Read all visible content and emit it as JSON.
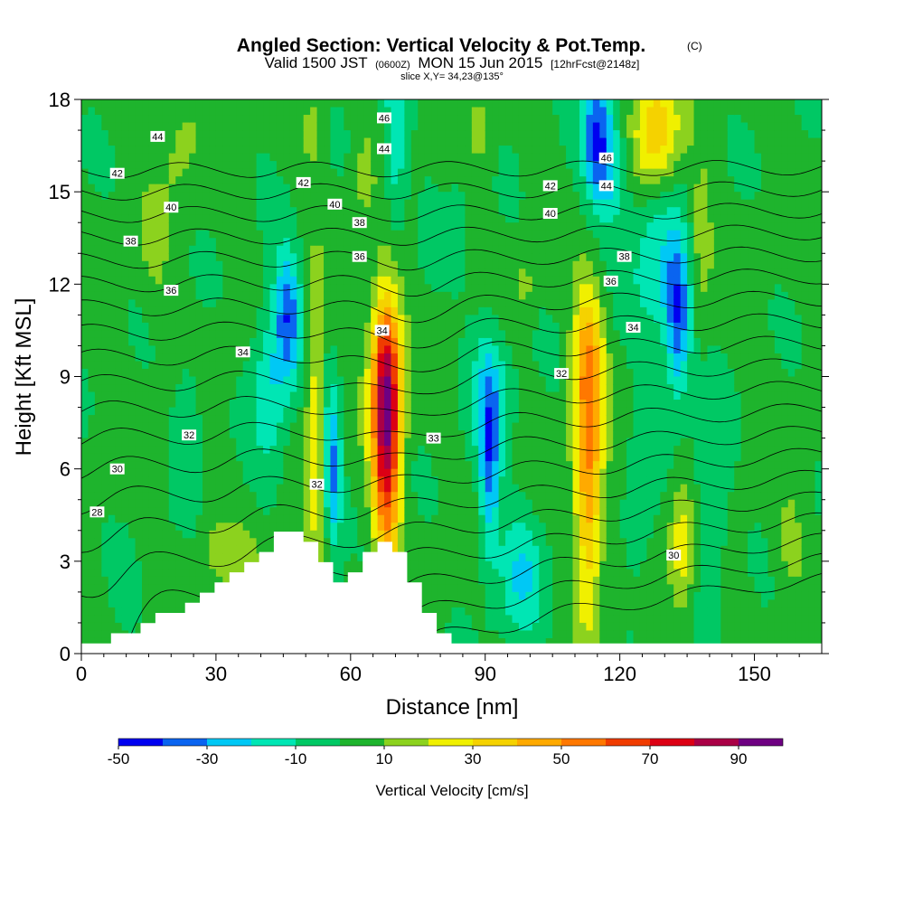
{
  "chart_data": {
    "type": "heatmap",
    "title": {
      "main": "Angled Section: Vertical Velocity & Pot.Temp.",
      "main_tag": "(C)",
      "valid_prefix": "Valid 1500 JST",
      "valid_zulu": "(0600Z)",
      "valid_date": "MON 15 Jun 2015",
      "forecast": "[12hrFcst@2148z]",
      "slice": "slice X,Y= 34,23@135°"
    },
    "xlabel": "Distance [nm]",
    "ylabel": "Height [Kft MSL]",
    "xlim": [
      0,
      165
    ],
    "ylim": [
      0,
      18
    ],
    "xticks": [
      0,
      30,
      60,
      90,
      120,
      150
    ],
    "yticks": [
      0,
      3,
      6,
      9,
      12,
      15,
      18
    ],
    "colorbar": {
      "title": "Vertical Velocity [cm/s]",
      "levels": [
        -50,
        -40,
        -30,
        -20,
        -10,
        0,
        10,
        20,
        30,
        40,
        50,
        60,
        70,
        80,
        90,
        100
      ],
      "labels": [
        "-50",
        "-30",
        "-10",
        "10",
        "30",
        "50",
        "70",
        "90"
      ],
      "label_values": [
        -50,
        -30,
        -10,
        10,
        30,
        50,
        70,
        90
      ],
      "colors": [
        "#0000f0",
        "#0a64f0",
        "#00c8f5",
        "#00e6b4",
        "#00c864",
        "#1eb42d",
        "#8cd21e",
        "#f0f000",
        "#f5d200",
        "#ffaa00",
        "#ff7800",
        "#f03c00",
        "#dc0014",
        "#aa0046",
        "#6e0082"
      ]
    },
    "vertical_velocity_features": [
      {
        "x": 68,
        "y": 7.0,
        "sx": 2.2,
        "sy": 2.8,
        "amp": 78
      },
      {
        "x": 68,
        "y": 9.5,
        "sx": 2.6,
        "sy": 1.8,
        "amp": 30
      },
      {
        "x": 113,
        "y": 6.0,
        "sx": 2.2,
        "sy": 3.2,
        "amp": 48
      },
      {
        "x": 113,
        "y": 9.8,
        "sx": 2.5,
        "sy": 1.6,
        "amp": 24
      },
      {
        "x": 52,
        "y": 7.5,
        "sx": 1.3,
        "sy": 2.8,
        "amp": 26
      },
      {
        "x": 134,
        "y": 3.5,
        "sx": 2.0,
        "sy": 1.4,
        "amp": 26
      },
      {
        "x": 128,
        "y": 17.0,
        "sx": 3.5,
        "sy": 1.3,
        "amp": 38
      },
      {
        "x": 56,
        "y": 3.2,
        "sx": 2.6,
        "sy": 1.0,
        "amp": 12
      },
      {
        "x": 36,
        "y": 3.0,
        "sx": 3.5,
        "sy": 0.8,
        "amp": 12
      },
      {
        "x": 30,
        "y": 3.5,
        "sx": 2.0,
        "sy": 0.6,
        "amp": 10
      },
      {
        "x": 22,
        "y": 16.5,
        "sx": 3.0,
        "sy": 1.5,
        "amp": 10
      },
      {
        "x": 16,
        "y": 13.0,
        "sx": 2.5,
        "sy": 1.4,
        "amp": 9
      },
      {
        "x": 138,
        "y": 13.3,
        "sx": 1.8,
        "sy": 1.8,
        "amp": 14
      },
      {
        "x": 99,
        "y": 12.0,
        "sx": 1.5,
        "sy": 0.8,
        "amp": 10
      },
      {
        "x": 52,
        "y": 17.0,
        "sx": 2.0,
        "sy": 1.0,
        "amp": 12
      },
      {
        "x": 63,
        "y": 15.5,
        "sx": 1.6,
        "sy": 1.2,
        "amp": 10
      },
      {
        "x": 89,
        "y": 17.0,
        "sx": 2.0,
        "sy": 1.0,
        "amp": 10
      },
      {
        "x": 158,
        "y": 3.5,
        "sx": 2.5,
        "sy": 1.2,
        "amp": 10
      },
      {
        "x": 46,
        "y": 11.0,
        "sx": 2.0,
        "sy": 1.5,
        "amp": -38
      },
      {
        "x": 42,
        "y": 8.8,
        "sx": 2.8,
        "sy": 2.0,
        "amp": -22
      },
      {
        "x": 56,
        "y": 6.0,
        "sx": 1.3,
        "sy": 1.8,
        "amp": -36
      },
      {
        "x": 57,
        "y": 3.0,
        "sx": 1.6,
        "sy": 1.2,
        "amp": -12
      },
      {
        "x": 91,
        "y": 6.0,
        "sx": 1.6,
        "sy": 2.2,
        "amp": -34
      },
      {
        "x": 91,
        "y": 8.6,
        "sx": 3.5,
        "sy": 1.6,
        "amp": -18
      },
      {
        "x": 98,
        "y": 2.5,
        "sx": 3.5,
        "sy": 1.5,
        "amp": -22
      },
      {
        "x": 70,
        "y": 16.5,
        "sx": 1.8,
        "sy": 2.2,
        "amp": -22
      },
      {
        "x": 115,
        "y": 17.0,
        "sx": 2.5,
        "sy": 1.5,
        "amp": -40
      },
      {
        "x": 118,
        "y": 15.5,
        "sx": 3.0,
        "sy": 1.2,
        "amp": -20
      },
      {
        "x": 133,
        "y": 10.8,
        "sx": 2.0,
        "sy": 1.8,
        "amp": -40
      },
      {
        "x": 128,
        "y": 12.5,
        "sx": 4.0,
        "sy": 1.8,
        "amp": -22
      },
      {
        "x": 140,
        "y": 5.0,
        "sx": 3.0,
        "sy": 2.2,
        "amp": -14
      },
      {
        "x": 124,
        "y": 4.2,
        "sx": 2.5,
        "sy": 2.0,
        "amp": -10
      },
      {
        "x": 84,
        "y": 14.0,
        "sx": 1.5,
        "sy": 1.0,
        "amp": -10
      },
      {
        "x": 24,
        "y": 8.0,
        "sx": 2.5,
        "sy": 1.6,
        "amp": -10
      },
      {
        "x": 78,
        "y": 13.5,
        "sx": 2.0,
        "sy": 1.0,
        "amp": -8
      },
      {
        "x": 10,
        "y": 2.0,
        "sx": 2.0,
        "sy": 1.0,
        "amp": -6
      }
    ],
    "terrain": {
      "x": [
        0,
        5,
        10,
        15,
        20,
        25,
        30,
        35,
        40,
        45,
        50,
        53,
        56,
        59,
        62,
        65,
        70,
        72,
        75,
        78,
        80,
        83,
        85,
        88,
        165
      ],
      "height": [
        0.35,
        0.35,
        0.65,
        1.0,
        1.3,
        1.65,
        2.0,
        2.6,
        3.2,
        3.9,
        3.9,
        3.2,
        2.7,
        2.3,
        2.6,
        3.6,
        3.6,
        3.0,
        2.0,
        1.3,
        0.9,
        0.6,
        0.4,
        0.35,
        0.35
      ]
    },
    "contours": {
      "name": "Potential Temperature (C)",
      "levels": [
        28,
        29,
        30,
        31,
        32,
        33,
        34,
        35,
        36,
        37,
        38,
        39,
        40,
        41,
        42,
        43,
        44,
        45,
        46,
        47
      ],
      "labels": [
        {
          "text": "44",
          "x": 17,
          "y": 16.8
        },
        {
          "text": "42",
          "x": 8,
          "y": 15.6
        },
        {
          "text": "40",
          "x": 20,
          "y": 14.5
        },
        {
          "text": "38",
          "x": 11,
          "y": 13.4
        },
        {
          "text": "36",
          "x": 20,
          "y": 11.8
        },
        {
          "text": "34",
          "x": 36,
          "y": 9.8
        },
        {
          "text": "32",
          "x": 24,
          "y": 7.1
        },
        {
          "text": "30",
          "x": 8,
          "y": 6.0
        },
        {
          "text": "28",
          "x": 3.5,
          "y": 4.6
        },
        {
          "text": "42",
          "x": 49.5,
          "y": 15.3
        },
        {
          "text": "40",
          "x": 56.5,
          "y": 14.6
        },
        {
          "text": "38",
          "x": 62,
          "y": 14.0
        },
        {
          "text": "36",
          "x": 62,
          "y": 12.9
        },
        {
          "text": "34",
          "x": 67,
          "y": 10.5
        },
        {
          "text": "32",
          "x": 52.5,
          "y": 5.5
        },
        {
          "text": "46",
          "x": 67.5,
          "y": 17.4
        },
        {
          "text": "44",
          "x": 67.5,
          "y": 16.4
        },
        {
          "text": "33",
          "x": 78.5,
          "y": 7.0
        },
        {
          "text": "42",
          "x": 104.5,
          "y": 15.2
        },
        {
          "text": "40",
          "x": 104.5,
          "y": 14.3
        },
        {
          "text": "46",
          "x": 117,
          "y": 16.1
        },
        {
          "text": "44",
          "x": 117,
          "y": 15.2
        },
        {
          "text": "38",
          "x": 121,
          "y": 12.9
        },
        {
          "text": "36",
          "x": 118,
          "y": 12.1
        },
        {
          "text": "34",
          "x": 123,
          "y": 10.6
        },
        {
          "text": "32",
          "x": 107,
          "y": 9.1
        },
        {
          "text": "30",
          "x": 132,
          "y": 3.2
        }
      ]
    }
  }
}
